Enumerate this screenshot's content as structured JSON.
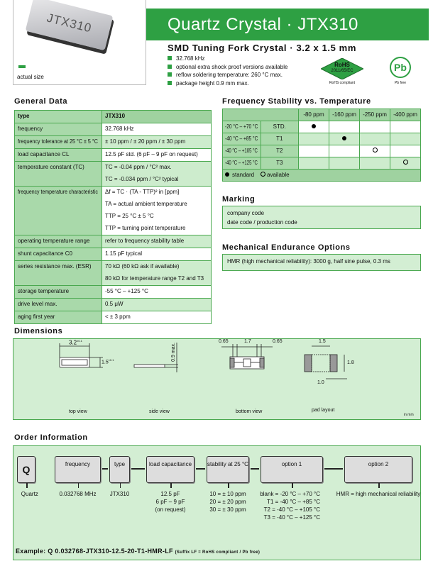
{
  "header": {
    "chip_marking": "JTX310",
    "actual_size": "actual size",
    "title": "Quartz Crystal · JTX310",
    "subtitle": "SMD Tuning Fork Crystal · 3.2 x 1.5 mm",
    "bullets": [
      "32.768 kHz",
      "optional extra shock proof versions available",
      "reflow soldering temperature: 260 °C max.",
      "package height 0.9 mm max."
    ],
    "rohs": {
      "line1": "RoHS",
      "line2": "2011/65/EC",
      "caption": "RoHS compliant"
    },
    "pb": {
      "text": "Pb",
      "caption": "Pb free"
    },
    "accent": "#2ea043"
  },
  "general": {
    "title": "General Data",
    "rows": [
      {
        "label": "type",
        "values": [
          "JTX310"
        ]
      },
      {
        "label": "frequency",
        "values": [
          "32.768 kHz"
        ]
      },
      {
        "label": "frequency tolerance at 25 °C ± 5 °C",
        "values": [
          "± 10 ppm / ± 20 ppm / ± 30 ppm"
        ]
      },
      {
        "label": "load capacitance CL",
        "values": [
          "12.5 pF std.   (6 pF – 9 pF on request)"
        ]
      },
      {
        "label": "temperature constant (TC)",
        "values": [
          "TC = -0.04 ppm / °C² max.",
          "TC = -0.034 ppm / °C² typical"
        ]
      },
      {
        "label": "frequency temperature characteristic",
        "values": [
          "Δf = TC · (TA - TTP)² in [ppm]",
          "TA = actual ambient temperature",
          "TTP = 25 °C ± 5 °C",
          "TTP = turning point temperature"
        ]
      },
      {
        "label": "operating temperature range",
        "values": [
          "refer to frequency stability table"
        ]
      },
      {
        "label": "shunt capacitance C0",
        "values": [
          "1.15 pF typical"
        ]
      },
      {
        "label": "series resistance max. (ESR)",
        "values": [
          "70 kΩ (60 kΩ ask if available)",
          "80 kΩ for temperature range T2 and T3"
        ]
      },
      {
        "label": "storage temperature",
        "values": [
          "-55 °C – +125 °C"
        ]
      },
      {
        "label": "drive level max.",
        "values": [
          "0.5 μW"
        ]
      },
      {
        "label": "aging first year",
        "values": [
          "< ± 3 ppm"
        ]
      }
    ]
  },
  "stability": {
    "title": "Frequency Stability vs. Temperature",
    "columns": [
      "-80 ppm",
      "-160 ppm",
      "-250 ppm",
      "-400 ppm"
    ],
    "rows": [
      {
        "range": "-20 °C –  +70 °C",
        "code": "STD.",
        "marks": [
          "standard",
          "",
          "",
          ""
        ]
      },
      {
        "range": "-40 °C –  +85 °C",
        "code": "T1",
        "marks": [
          "",
          "standard",
          "",
          ""
        ]
      },
      {
        "range": "-40 °C – +105 °C",
        "code": "T2",
        "marks": [
          "",
          "",
          "available",
          ""
        ]
      },
      {
        "range": "-40 °C – +125 °C",
        "code": "T3",
        "marks": [
          "",
          "",
          "",
          "available"
        ]
      }
    ],
    "legend_standard": "standard",
    "legend_available": "available"
  },
  "marking": {
    "title": "Marking",
    "lines": [
      "company code",
      "date code / production code"
    ]
  },
  "mechanical": {
    "title": "Mechanical Endurance Options",
    "text": "HMR (high mechanical reliability):  3000 g, half sine pulse, 0.3 ms"
  },
  "dimensions": {
    "title": "Dimensions",
    "top_w": "3.2",
    "top_w_tol": "±0.1",
    "top_h": "1.5",
    "top_h_tol": "±0.1",
    "side_h": "0.9 max.",
    "bottom_a": "0.65",
    "bottom_b": "1.7",
    "bottom_c": "0.65",
    "pad_w": "1.5",
    "pad_h": "1.8",
    "pad_gap": "1.0",
    "views": [
      "top view",
      "side view",
      "bottom view",
      "pad layout"
    ],
    "unit": "in mm"
  },
  "order": {
    "title": "Order Information",
    "boxes": [
      {
        "label": "Q",
        "values": [
          "Quartz"
        ]
      },
      {
        "label": "frequency",
        "values": [
          "0.032768 MHz"
        ]
      },
      {
        "label": "type",
        "values": [
          "JTX310"
        ]
      },
      {
        "label": "load capacitance",
        "values": [
          "12.5 pF",
          "6 pF – 9 pF",
          "(on request)"
        ]
      },
      {
        "label": "stability at 25 °C",
        "values": [
          "10 = ± 10 ppm",
          "20 = ± 20 ppm",
          "30 = ± 30 ppm"
        ]
      },
      {
        "label": "option 1",
        "values": [
          "blank = -20 °C –  +70 °C",
          "T1 = -40 °C –  +85 °C",
          "T2 = -40 °C – +105 °C",
          "T3 = -40 °C – +125 °C"
        ]
      },
      {
        "label": "option 2",
        "values": [
          "HMR = high mechanical reliability"
        ]
      }
    ],
    "example_label": "Example:",
    "example": "Q 0.032768-JTX310-12.5-20-T1-HMR-LF",
    "example_note": "(Suffix LF = RoHS compliant / Pb free)"
  }
}
